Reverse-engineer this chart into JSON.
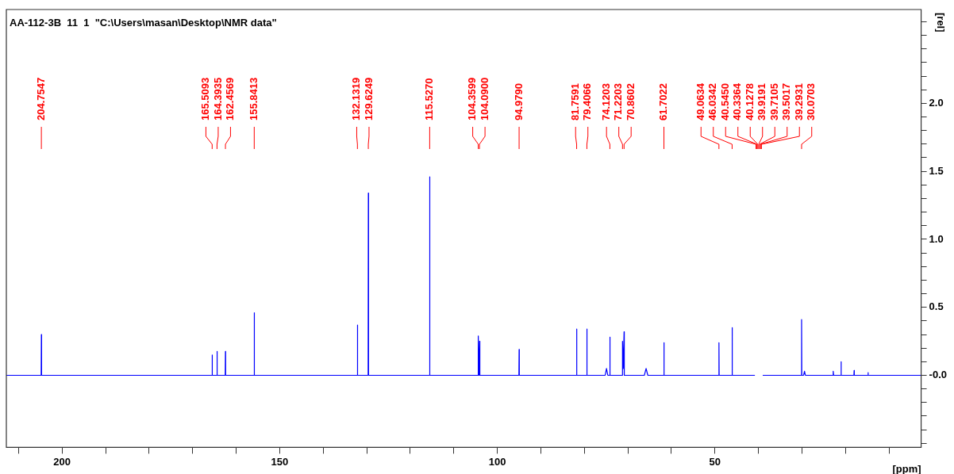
{
  "chart_data": {
    "type": "line",
    "title": "AA-112-3B  11  1  \"C:\\Users\\masan\\Desktop\\NMR data\"",
    "xlabel": "[ppm]",
    "ylabel": "[rel]",
    "xlim": [
      212.8,
      2.6
    ],
    "ylim": [
      -0.53,
      2.69
    ],
    "xticks": [
      {
        "value": 210,
        "label": null
      },
      200,
      {
        "value": 190,
        "label": null
      },
      {
        "value": 180,
        "label": null
      },
      {
        "value": 170,
        "label": null
      },
      {
        "value": 160,
        "label": null
      },
      150,
      {
        "value": 140,
        "label": null
      },
      {
        "value": 130,
        "label": null
      },
      {
        "value": 120,
        "label": null
      },
      {
        "value": 110,
        "label": null
      },
      100,
      {
        "value": 90,
        "label": null
      },
      {
        "value": 80,
        "label": null
      },
      {
        "value": 70,
        "label": null
      },
      {
        "value": 60,
        "label": null
      },
      50,
      {
        "value": 40,
        "label": null
      },
      {
        "value": 30,
        "label": null
      },
      {
        "value": 20,
        "label": null
      },
      {
        "value": 10,
        "label": null
      }
    ],
    "yticks": [
      {
        "value": -0.5,
        "label": null
      },
      {
        "value": -0.4,
        "label": null
      },
      {
        "value": -0.3,
        "label": null
      },
      {
        "value": -0.2,
        "label": null
      },
      {
        "value": -0.1,
        "label": null
      },
      {
        "value": 0,
        "label": "-0.0"
      },
      {
        "value": 0.1,
        "label": null
      },
      {
        "value": 0.2,
        "label": null
      },
      {
        "value": 0.3,
        "label": null
      },
      {
        "value": 0.4,
        "label": null
      },
      {
        "value": 0.5,
        "label": "0.5"
      },
      {
        "value": 0.6,
        "label": null
      },
      {
        "value": 0.7,
        "label": null
      },
      {
        "value": 0.8,
        "label": null
      },
      {
        "value": 0.9,
        "label": null
      },
      {
        "value": 1,
        "label": "1.0"
      },
      {
        "value": 1.1,
        "label": null
      },
      {
        "value": 1.2,
        "label": null
      },
      {
        "value": 1.3,
        "label": null
      },
      {
        "value": 1.4,
        "label": null
      },
      {
        "value": 1.5,
        "label": "1.5"
      },
      {
        "value": 1.6,
        "label": null
      },
      {
        "value": 1.7,
        "label": null
      },
      {
        "value": 1.8,
        "label": null
      },
      {
        "value": 1.9,
        "label": null
      },
      {
        "value": 2,
        "label": "2.0"
      },
      {
        "value": 2.1,
        "label": null
      },
      {
        "value": 2.2,
        "label": null
      },
      {
        "value": 2.3,
        "label": null
      },
      {
        "value": 2.4,
        "label": null
      },
      {
        "value": 2.5,
        "label": null
      },
      {
        "value": 2.6,
        "label": null
      }
    ],
    "legend": false,
    "grid": false,
    "marker": "none",
    "line_style": "solid",
    "series": [
      {
        "color": "#0000ff",
        "x": [
          212.8,
          204.8,
          204.75,
          204.7,
          165.56,
          165.51,
          165.46,
          164.44,
          164.39,
          164.34,
          162.51,
          162.46,
          162.41,
          155.89,
          155.84,
          155.79,
          132.18,
          132.13,
          132.08,
          129.67,
          129.62,
          129.57,
          115.58,
          115.53,
          115.48,
          104.41,
          104.36,
          104.2,
          104.05,
          104.0,
          95.03,
          94.98,
          94.93,
          81.81,
          81.76,
          81.71,
          79.46,
          79.41,
          79.36,
          75.2,
          74.9,
          74.6,
          74.17,
          74.12,
          74.07,
          71.27,
          71.22,
          71.05,
          70.86,
          70.81,
          66.2,
          65.8,
          65.4,
          61.75,
          61.7,
          61.65,
          49.11,
          49.06,
          49.01,
          46.08,
          46.03,
          45.98,
          40.8,
          40.55,
          40.34,
          40.13,
          39.92,
          39.71,
          39.5,
          39.29,
          39.0,
          30.12,
          30.07,
          30.02,
          29.6,
          29.4,
          29.2,
          22.9,
          22.8,
          22.7,
          21.05,
          21.0,
          20.95,
          18.05,
          18.0,
          17.95,
          14.85,
          14.8,
          14.75,
          2.6
        ],
        "values": [
          0,
          0,
          0.3,
          0,
          0,
          0.15,
          0,
          0,
          0.175,
          0,
          0,
          0.175,
          0,
          0,
          0.46,
          0,
          0,
          0.37,
          0,
          0,
          1.34,
          0,
          0,
          1.46,
          0,
          0,
          0.29,
          0,
          0.25,
          0,
          0,
          0.19,
          0,
          0,
          0.34,
          0,
          0,
          0.34,
          0,
          0,
          0.05,
          0,
          0,
          0.28,
          0,
          0,
          0.25,
          0.05,
          0.32,
          0,
          0,
          0.05,
          0,
          0,
          0.24,
          0,
          0,
          0.24,
          0,
          0,
          0.35,
          0,
          0,
          null,
          null,
          null,
          null,
          null,
          null,
          null,
          0,
          0,
          0.41,
          0,
          0,
          0.03,
          0,
          0,
          0.03,
          0,
          0,
          0.1,
          0,
          0,
          0.035,
          0,
          0,
          0.02,
          0,
          0
        ]
      }
    ],
    "annotations": [
      {
        "text": "204.7547",
        "x": 204.7547
      },
      {
        "text": "165.5093",
        "x": 165.5093
      },
      {
        "text": "164.3935",
        "x": 164.3935
      },
      {
        "text": "162.4569",
        "x": 162.4569
      },
      {
        "text": "155.8413",
        "x": 155.8413
      },
      {
        "text": "132.1319",
        "x": 132.1319
      },
      {
        "text": "129.6249",
        "x": 129.6249
      },
      {
        "text": "115.5270",
        "x": 115.527
      },
      {
        "text": "104.3599",
        "x": 104.3599
      },
      {
        "text": "104.0900",
        "x": 104.09
      },
      {
        "text": "94.9790",
        "x": 94.979
      },
      {
        "text": "81.7591",
        "x": 81.7591
      },
      {
        "text": "79.4066",
        "x": 79.4066
      },
      {
        "text": "74.1203",
        "x": 74.1203
      },
      {
        "text": "71.2203",
        "x": 71.2203
      },
      {
        "text": "70.8602",
        "x": 70.8602
      },
      {
        "text": "61.7022",
        "x": 61.7022
      },
      {
        "text": "49.0634",
        "x": 49.0634
      },
      {
        "text": "46.0342",
        "x": 46.0342
      },
      {
        "text": "40.5450",
        "x": 40.545
      },
      {
        "text": "40.3364",
        "x": 40.3364
      },
      "40.1278",
      "39.9191",
      "39.7105",
      {
        "text": "39.5017",
        "x": 39.5017
      },
      {
        "text": "39.2931",
        "x": 39.2931
      },
      {
        "text": "30.0703",
        "x": 30.0703
      }
    ]
  }
}
